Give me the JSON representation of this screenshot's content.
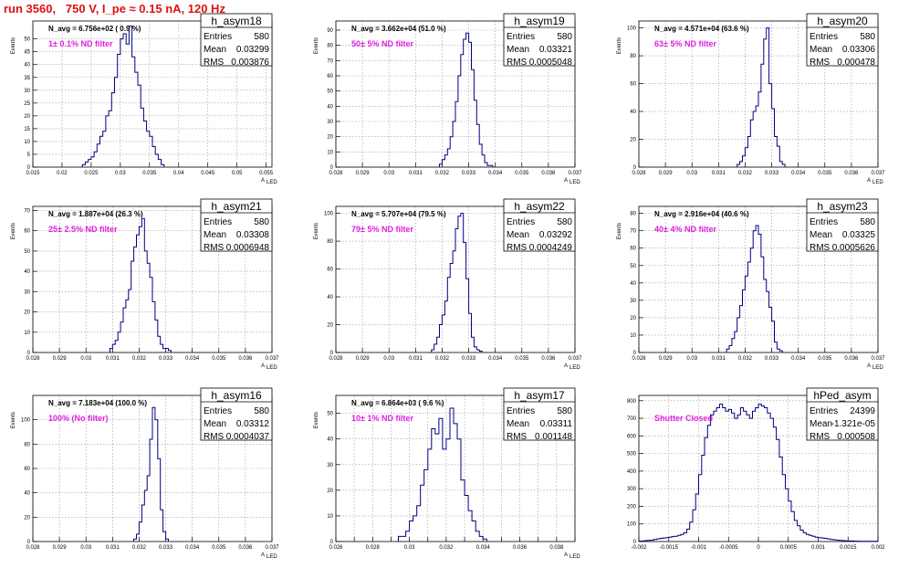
{
  "run_title": "run 3560,   750 V, I_pe ≈ 0.15 nA, 120 Hz",
  "chart_data": [
    {
      "type": "bar",
      "name": "h_asym18",
      "stats": {
        "entries_label": "Entries",
        "entries": "580",
        "mean_label": "Mean",
        "mean": "0.03299",
        "rms_label": "RMS",
        "rms": "0.003876"
      },
      "navg": "N_avg = 6.756e+02 ( 0.9 %)",
      "filter_label": "1± 0.1% ND filter",
      "xlabel": "A",
      "xlabel_sub": "LED",
      "ylabel": "Events",
      "xlim": [
        0.015,
        0.056
      ],
      "ylim": [
        0,
        57
      ],
      "xticks": [
        0.015,
        0.02,
        0.025,
        0.03,
        0.035,
        0.04,
        0.045,
        0.05,
        0.055
      ],
      "xtick_labels": [
        "0.015",
        "0.02",
        "0.025",
        "0.03",
        "0.035",
        "0.04",
        "0.045",
        "0.05",
        "0.055"
      ],
      "yticks": [
        0,
        5,
        10,
        15,
        20,
        25,
        30,
        35,
        40,
        45,
        50
      ],
      "ytick_labels": [
        "0",
        "5",
        "10",
        "15",
        "20",
        "25",
        "30",
        "35",
        "40",
        "45",
        "50"
      ],
      "bin_start": 0.0235,
      "bin_width": 0.0005,
      "values": [
        1,
        2,
        3,
        4,
        6,
        9,
        12,
        14,
        20,
        22,
        29,
        35,
        44,
        50,
        52,
        48,
        55,
        43,
        37,
        32,
        23,
        18,
        14,
        12,
        8,
        5,
        3,
        1
      ]
    },
    {
      "type": "bar",
      "name": "h_asym19",
      "stats": {
        "entries_label": "Entries",
        "entries": "580",
        "mean_label": "Mean",
        "mean": "0.03321",
        "rms_label": "RMS",
        "rms": "0.0005048"
      },
      "navg": "N_avg = 3.662e+04 (51.0 %)",
      "filter_label": "50± 5% ND filter",
      "xlabel": "A",
      "xlabel_sub": "LED",
      "ylabel": "Events",
      "xlim": [
        0.028,
        0.037
      ],
      "ylim": [
        0,
        96
      ],
      "xticks": [
        0.028,
        0.029,
        0.03,
        0.031,
        0.032,
        0.033,
        0.034,
        0.035,
        0.036,
        0.037
      ],
      "xtick_labels": [
        "0.028",
        "0.029",
        "0.03",
        "0.031",
        "0.032",
        "0.033",
        "0.034",
        "0.035",
        "0.036",
        "0.037"
      ],
      "yticks": [
        0,
        10,
        20,
        30,
        40,
        50,
        60,
        70,
        80,
        90
      ],
      "ytick_labels": [
        "0",
        "10",
        "20",
        "30",
        "40",
        "50",
        "60",
        "70",
        "80",
        "90"
      ],
      "bin_start": 0.0319,
      "bin_width": 0.0001,
      "values": [
        2,
        5,
        8,
        12,
        20,
        30,
        43,
        60,
        74,
        84,
        88,
        82,
        64,
        44,
        28,
        15,
        8,
        3,
        1,
        1
      ]
    },
    {
      "type": "bar",
      "name": "h_asym20",
      "stats": {
        "entries_label": "Entries",
        "entries": "580",
        "mean_label": "Mean",
        "mean": "0.03306",
        "rms_label": "RMS",
        "rms": "0.000478"
      },
      "navg": "N_avg = 4.571e+04 (63.6 %)",
      "filter_label": "63± 5% ND filter",
      "xlabel": "A",
      "xlabel_sub": "LED",
      "ylabel": "Events",
      "xlim": [
        0.028,
        0.037
      ],
      "ylim": [
        0,
        105
      ],
      "xticks": [
        0.028,
        0.029,
        0.03,
        0.031,
        0.032,
        0.033,
        0.034,
        0.035,
        0.036,
        0.037
      ],
      "xtick_labels": [
        "0.028",
        "0.029",
        "0.03",
        "0.031",
        "0.032",
        "0.033",
        "0.034",
        "0.035",
        "0.036",
        "0.037"
      ],
      "yticks": [
        0,
        20,
        40,
        60,
        80,
        100
      ],
      "ytick_labels": [
        "0",
        "20",
        "40",
        "60",
        "80",
        "100"
      ],
      "bin_start": 0.0317,
      "bin_width": 0.0001,
      "values": [
        2,
        4,
        8,
        14,
        22,
        34,
        40,
        44,
        54,
        74,
        92,
        100,
        60,
        42,
        22,
        15,
        4,
        2
      ]
    },
    {
      "type": "bar",
      "name": "h_asym21",
      "stats": {
        "entries_label": "Entries",
        "entries": "580",
        "mean_label": "Mean",
        "mean": "0.03308",
        "rms_label": "RMS",
        "rms": "0.0006948"
      },
      "navg": "N_avg = 1.887e+04 (26.3 %)",
      "filter_label": "25± 2.5% ND filter",
      "xlabel": "A",
      "xlabel_sub": "LED",
      "ylabel": "Events",
      "xlim": [
        0.028,
        0.037
      ],
      "ylim": [
        0,
        72
      ],
      "xticks": [
        0.028,
        0.029,
        0.03,
        0.031,
        0.032,
        0.033,
        0.034,
        0.035,
        0.036,
        0.037
      ],
      "xtick_labels": [
        "0.028",
        "0.029",
        "0.03",
        "0.031",
        "0.032",
        "0.033",
        "0.034",
        "0.035",
        "0.036",
        "0.037"
      ],
      "yticks": [
        0,
        10,
        20,
        30,
        40,
        50,
        60,
        70
      ],
      "ytick_labels": [
        "0",
        "10",
        "20",
        "30",
        "40",
        "50",
        "60",
        "70"
      ],
      "bin_start": 0.0309,
      "bin_width": 0.0001,
      "values": [
        2,
        4,
        6,
        10,
        15,
        22,
        26,
        31,
        45,
        52,
        58,
        62,
        66,
        50,
        44,
        37,
        25,
        16,
        8,
        4,
        2,
        2,
        1
      ]
    },
    {
      "type": "bar",
      "name": "h_asym22",
      "stats": {
        "entries_label": "Entries",
        "entries": "580",
        "mean_label": "Mean",
        "mean": "0.03292",
        "rms_label": "RMS",
        "rms": "0.0004249"
      },
      "navg": "N_avg = 5.707e+04 (79.5 %)",
      "filter_label": "79± 5% ND filter",
      "xlabel": "A",
      "xlabel_sub": "LED",
      "ylabel": "Events",
      "xlim": [
        0.028,
        0.037
      ],
      "ylim": [
        0,
        105
      ],
      "xticks": [
        0.028,
        0.029,
        0.03,
        0.031,
        0.032,
        0.033,
        0.034,
        0.035,
        0.036,
        0.037
      ],
      "xtick_labels": [
        "0.028",
        "0.029",
        "0.03",
        "0.031",
        "0.032",
        "0.033",
        "0.034",
        "0.035",
        "0.036",
        "0.037"
      ],
      "yticks": [
        0,
        20,
        40,
        60,
        80,
        100
      ],
      "ytick_labels": [
        "0",
        "20",
        "40",
        "60",
        "80",
        "100"
      ],
      "bin_start": 0.0316,
      "bin_width": 0.0001,
      "values": [
        2,
        6,
        11,
        20,
        27,
        37,
        54,
        64,
        73,
        89,
        98,
        100,
        79,
        53,
        28,
        11,
        4,
        2,
        1
      ]
    },
    {
      "type": "bar",
      "name": "h_asym23",
      "stats": {
        "entries_label": "Entries",
        "entries": "580",
        "mean_label": "Mean",
        "mean": "0.03325",
        "rms_label": "RMS",
        "rms": "0.0005626"
      },
      "navg": "N_avg = 2.916e+04 (40.6 %)",
      "filter_label": "40± 4% ND filter",
      "xlabel": "A",
      "xlabel_sub": "LED",
      "ylabel": "Events",
      "xlim": [
        0.028,
        0.037
      ],
      "ylim": [
        0,
        84
      ],
      "xticks": [
        0.028,
        0.029,
        0.03,
        0.031,
        0.032,
        0.033,
        0.034,
        0.035,
        0.036,
        0.037
      ],
      "xtick_labels": [
        "0.028",
        "0.029",
        "0.03",
        "0.031",
        "0.032",
        "0.033",
        "0.034",
        "0.035",
        "0.036",
        "0.037"
      ],
      "yticks": [
        0,
        10,
        20,
        30,
        40,
        50,
        60,
        70,
        80
      ],
      "ytick_labels": [
        "0",
        "10",
        "20",
        "30",
        "40",
        "50",
        "60",
        "70",
        "80"
      ],
      "bin_start": 0.0313,
      "bin_width": 0.0001,
      "values": [
        2,
        4,
        8,
        12,
        20,
        27,
        36,
        44,
        52,
        60,
        70,
        73,
        68,
        55,
        42,
        35,
        26,
        18,
        6,
        2,
        1
      ]
    },
    {
      "type": "bar",
      "name": "h_asym16",
      "stats": {
        "entries_label": "Entries",
        "entries": "580",
        "mean_label": "Mean",
        "mean": "0.03312",
        "rms_label": "RMS",
        "rms": "0.0004037"
      },
      "navg": "N_avg = 7.183e+04 (100.0 %)",
      "filter_label": "100% (No filter)",
      "xlabel": "A",
      "xlabel_sub": "LED",
      "ylabel": "Events",
      "xlim": [
        0.028,
        0.037
      ],
      "ylim": [
        0,
        120
      ],
      "xticks": [
        0.028,
        0.029,
        0.03,
        0.031,
        0.032,
        0.033,
        0.034,
        0.035,
        0.036,
        0.037
      ],
      "xtick_labels": [
        "0.028",
        "0.029",
        "0.03",
        "0.031",
        "0.032",
        "0.033",
        "0.034",
        "0.035",
        "0.036",
        "0.037"
      ],
      "yticks": [
        0,
        20,
        40,
        60,
        80,
        100
      ],
      "ytick_labels": [
        "0",
        "20",
        "40",
        "60",
        "80",
        "100"
      ],
      "bin_start": 0.0318,
      "bin_width": 0.0001,
      "values": [
        2,
        6,
        16,
        30,
        42,
        54,
        84,
        110,
        100,
        68,
        26,
        8,
        2
      ]
    },
    {
      "type": "bar",
      "name": "h_asym17",
      "stats": {
        "entries_label": "Entries",
        "entries": "580",
        "mean_label": "Mean",
        "mean": "0.03311",
        "rms_label": "RMS",
        "rms": "0.001148"
      },
      "navg": "N_avg = 6.864e+03 ( 9.6 %)",
      "filter_label": "10± 1% ND filter",
      "xlabel": "A",
      "xlabel_sub": "LED",
      "ylabel": "Events",
      "xlim": [
        0.026,
        0.039
      ],
      "ylim": [
        0,
        57
      ],
      "xticks": [
        0.026,
        0.027,
        0.028,
        0.029,
        0.03,
        0.031,
        0.032,
        0.033,
        0.034,
        0.035,
        0.036,
        0.037,
        0.038,
        0.039
      ],
      "xtick_labels": [
        "0.026",
        "",
        "0.028",
        "",
        "0.03",
        "",
        "0.032",
        "",
        "0.034",
        "",
        "0.036",
        "",
        "0.038",
        ""
      ],
      "yticks": [
        0,
        10,
        20,
        30,
        40,
        50
      ],
      "ytick_labels": [
        "0",
        "10",
        "20",
        "30",
        "40",
        "50"
      ],
      "bin_start": 0.0294,
      "bin_width": 0.0002,
      "values": [
        2,
        2,
        4,
        8,
        10,
        14,
        22,
        28,
        36,
        44,
        42,
        48,
        36,
        40,
        52,
        46,
        40,
        24,
        18,
        12,
        8,
        4,
        2,
        1
      ]
    },
    {
      "type": "bar",
      "name": "hPed_asym",
      "stats": {
        "entries_label": "Entries",
        "entries": "24399",
        "mean_label": "Mean",
        "mean": "-1.321e-05",
        "rms_label": "RMS",
        "rms": "0.000508"
      },
      "navg": "",
      "filter_label": "Shutter Closed",
      "xlabel": "",
      "xlabel_sub": "",
      "ylabel": "",
      "xlim": [
        -0.002,
        0.002
      ],
      "ylim": [
        0,
        830
      ],
      "xticks": [
        -0.002,
        -0.0015,
        -0.001,
        -0.0005,
        0,
        0.0005,
        0.001,
        0.0015,
        0.002
      ],
      "xtick_labels": [
        "-0.002",
        "-0.0015",
        "-0.001",
        "-0.0005",
        "0",
        "0.0005",
        "0.001",
        "0.0015",
        "0.002"
      ],
      "yticks": [
        0,
        100,
        200,
        300,
        400,
        500,
        600,
        700,
        800
      ],
      "ytick_labels": [
        "0",
        "100",
        "200",
        "300",
        "400",
        "500",
        "600",
        "700",
        "800"
      ],
      "bin_start": -0.002,
      "bin_width": 5e-05,
      "values": [
        2,
        3,
        5,
        6,
        8,
        12,
        15,
        18,
        20,
        22,
        25,
        28,
        30,
        35,
        40,
        50,
        70,
        110,
        180,
        270,
        380,
        490,
        590,
        660,
        720,
        740,
        760,
        780,
        760,
        740,
        750,
        730,
        700,
        720,
        760,
        740,
        720,
        700,
        740,
        760,
        780,
        770,
        760,
        730,
        700,
        650,
        580,
        480,
        380,
        300,
        230,
        170,
        120,
        90,
        65,
        50,
        40,
        35,
        30,
        25,
        22,
        20,
        18,
        15,
        12,
        10,
        8,
        6,
        5,
        4,
        3,
        3,
        2,
        2,
        1,
        1,
        1,
        1,
        1,
        1
      ]
    }
  ]
}
